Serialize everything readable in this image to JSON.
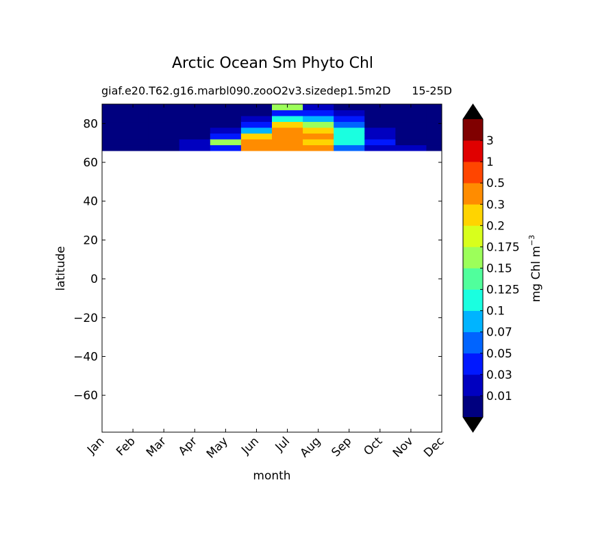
{
  "chart_data": {
    "type": "contour",
    "title": "Arctic Ocean Sm Phyto Chl",
    "subtitle_left": "giaf.e20.T62.g16.marbl090.zooO2v3.sizedep1.5m2D",
    "subtitle_right": "15-25D",
    "xlabel": "month",
    "ylabel": "latitude",
    "categories": [
      "Jan",
      "Feb",
      "Mar",
      "Apr",
      "May",
      "Jun",
      "Jul",
      "Aug",
      "Sep",
      "Oct",
      "Nov",
      "Dec"
    ],
    "y": [
      67.5,
      70.5,
      73.5,
      76.5,
      79.5,
      82.5,
      85.5,
      88.5
    ],
    "z": [
      [
        0.005,
        0.005,
        0.005,
        0.005,
        0.005,
        0.005,
        0.005,
        0.005
      ],
      [
        0.005,
        0.005,
        0.005,
        0.005,
        0.005,
        0.005,
        0.005,
        0.005
      ],
      [
        0.005,
        0.005,
        0.005,
        0.005,
        0.005,
        0.005,
        0.005,
        0.005
      ],
      [
        0.02,
        0.01,
        0.005,
        0.005,
        0.005,
        0.005,
        0.005,
        0.005
      ],
      [
        0.04,
        0.15,
        0.03,
        0.01,
        0.005,
        0.005,
        0.005,
        0.005
      ],
      [
        0.4,
        0.3,
        0.2,
        0.08,
        0.03,
        0.01,
        0.005,
        0.005
      ],
      [
        0.4,
        0.4,
        0.35,
        0.3,
        0.2,
        0.1,
        0.04,
        0.15
      ],
      [
        0.3,
        0.25,
        0.3,
        0.2,
        0.15,
        0.08,
        0.03,
        0.02
      ],
      [
        0.05,
        0.1,
        0.12,
        0.1,
        0.06,
        0.03,
        0.01,
        0.005
      ],
      [
        0.02,
        0.03,
        0.02,
        0.01,
        0.005,
        0.005,
        0.005,
        0.005
      ],
      [
        0.01,
        0.005,
        0.005,
        0.005,
        0.005,
        0.005,
        0.005,
        0.005
      ],
      [
        0.005,
        0.005,
        0.005,
        0.005,
        0.005,
        0.005,
        0.005,
        0.005
      ]
    ],
    "ylim": [
      -79,
      90
    ],
    "yticks": [
      {
        "value": 80,
        "label": "80"
      },
      {
        "value": 60,
        "label": "60"
      },
      {
        "value": 40,
        "label": "40"
      },
      {
        "value": 20,
        "label": "20"
      },
      {
        "value": 0,
        "label": "0"
      },
      {
        "value": -20,
        "label": "−20"
      },
      {
        "value": -40,
        "label": "−40"
      },
      {
        "value": -60,
        "label": "−60"
      }
    ],
    "levels": [
      0.01,
      0.03,
      0.05,
      0.07,
      0.1,
      0.125,
      0.15,
      0.175,
      0.2,
      0.3,
      0.5,
      1,
      3
    ],
    "colors": [
      "#00007f",
      "#0000c0",
      "#0018ff",
      "#0064ff",
      "#00b4ff",
      "#1affe0",
      "#50ff9c",
      "#9cff5a",
      "#d8ff1c",
      "#ffd400",
      "#ff8c00",
      "#ff4500",
      "#e00000",
      "#800000"
    ],
    "extend_color": "#000000",
    "colorbar_label": "mg Chl m",
    "colorbar_label_exp": "−3"
  }
}
